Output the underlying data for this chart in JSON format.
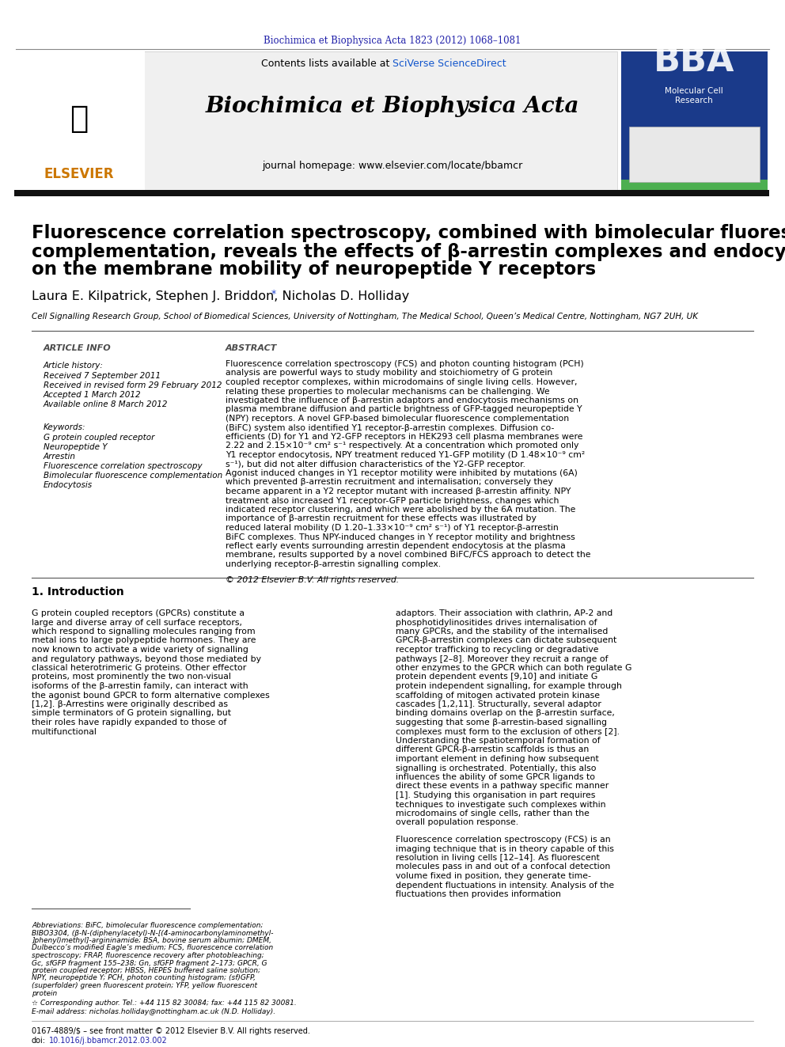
{
  "page_width": 9.92,
  "page_height": 13.23,
  "bg_color": "#ffffff",
  "top_citation": "Biochimica et Biophysica Acta 1823 (2012) 1068–1081",
  "top_citation_color": "#2222aa",
  "header_bg": "#f0f0f0",
  "journal_title": "Biochimica et Biophysica Acta",
  "contents_line": "Contents lists available at ",
  "sciverse_text": "SciVerse ScienceDirect",
  "sciverse_color": "#1155cc",
  "homepage_line": "journal homepage: www.elsevier.com/locate/bbamcr",
  "elsevier_color": "#cc7700",
  "bba_bg": "#1a3a8a",
  "bba_green": "#4caf50",
  "article_title_line1": "Fluorescence correlation spectroscopy, combined with bimolecular fluorescence",
  "article_title_line2": "complementation, reveals the effects of β-arrestin complexes and endocytic targeting",
  "article_title_line3": "on the membrane mobility of neuropeptide Y receptors",
  "authors": "Laura E. Kilpatrick, Stephen J. Briddon, Nicholas D. Holliday ",
  "authors_asterisk": "*",
  "affiliation": "Cell Signalling Research Group, School of Biomedical Sciences, University of Nottingham, The Medical School, Queen’s Medical Centre, Nottingham, NG7 2UH, UK",
  "article_info_title": "ARTICLE INFO",
  "abstract_title": "ABSTRACT",
  "article_history_title": "Article history:",
  "article_history": [
    "Received 7 September 2011",
    "Received in revised form 29 February 2012",
    "Accepted 1 March 2012",
    "Available online 8 March 2012"
  ],
  "keywords_title": "Keywords:",
  "keywords": [
    "G protein coupled receptor",
    "Neuropeptide Y",
    "Arrestin",
    "Fluorescence correlation spectroscopy",
    "Bimolecular fluorescence complementation",
    "Endocytosis"
  ],
  "abstract_text": "Fluorescence correlation spectroscopy (FCS) and photon counting histogram (PCH) analysis are powerful ways to study mobility and stoichiometry of G protein coupled receptor complexes, within microdomains of single living cells. However, relating these properties to molecular mechanisms can be challenging. We investigated the influence of β-arrestin adaptors and endocytosis mechanisms on plasma membrane diffusion and particle brightness of GFP-tagged neuropeptide Y (NPY) receptors. A novel GFP-based bimolecular fluorescence complementation (BiFC) system also identified Y1 receptor-β-arrestin complexes. Diffusion co-efficients (D) for Y1 and Y2-GFP receptors in HEK293 cell plasma membranes were 2.22 and 2.15×10⁻⁹ cm² s⁻¹ respectively. At a concentration which promoted only Y1 receptor endocytosis, NPY treatment reduced Y1-GFP motility (D 1.48×10⁻⁹ cm² s⁻¹), but did not alter diffusion characteristics of the Y2-GFP receptor. Agonist induced changes in Y1 receptor motility were inhibited by mutations (6A) which prevented β-arrestin recruitment and internalisation; conversely they became apparent in a Y2 receptor mutant with increased β-arrestin affinity. NPY treatment also increased Y1 receptor-GFP particle brightness, changes which indicated receptor clustering, and which were abolished by the 6A mutation. The importance of β-arrestin recruitment for these effects was illustrated by reduced lateral mobility (D 1.20–1.33×10⁻⁹ cm² s⁻¹) of Y1 receptor-β-arrestin BiFC complexes. Thus NPY-induced changes in Y receptor motility and brightness reflect early events surrounding arrestin dependent endocytosis at the plasma membrane, results supported by a novel combined BiFC/FCS approach to detect the underlying receptor-β-arrestin signalling complex.",
  "copyright": "© 2012 Elsevier B.V. All rights reserved.",
  "intro_title": "1. Introduction",
  "intro_col1": "G protein coupled receptors (GPCRs) constitute a large and diverse array of cell surface receptors, which respond to signalling molecules ranging from metal ions to large polypeptide hormones. They are now known to activate a wide variety of signalling and regulatory pathways, beyond those mediated by classical heterotrimeric G proteins. Other effector proteins, most prominently the two non-visual isoforms of the β-arrestin family, can interact with the agonist bound GPCR to form alternative complexes [1,2]. β-Arrestins were originally described as simple terminators of G protein signalling, but their roles have rapidly expanded to those of multifunctional",
  "intro_col2": "adaptors. Their association with clathrin, AP-2 and phosphotidylinositides drives internalisation of many GPCRs, and the stability of the internalised GPCR-β-arrestin complexes can dictate subsequent receptor trafficking to recycling or degradative pathways [2–8]. Moreover they recruit a range of other enzymes to the GPCR which can both regulate G protein dependent events [9,10] and initiate G protein independent signalling, for example through scaffolding of mitogen activated protein kinase cascades [1,2,11]. Structurally, several adaptor binding domains overlap on the β-arrestin surface, suggesting that some β-arrestin-based signalling complexes must form to the exclusion of others [2]. Understanding the spatiotemporal formation of different GPCR-β-arrestin scaffolds is thus an important element in defining how subsequent signalling is orchestrated. Potentially, this also influences the ability of some GPCR ligands to direct these events in a pathway specific manner [1]. Studying this organisation in part requires techniques to investigate such complexes within microdomains of single cells, rather than the overall population response.",
  "footnote_abbrev": "Abbreviations: BiFC, bimolecular fluorescence complementation; BIBO3304, (β-N-(diphenylacetyl)-N-[(4-aminocarbonylaminomethyl-]phenyl)methyl]-argininamide; BSA, bovine serum albumin; DMEM, Dulbecco’s modified Eagle’s medium; FCS, fluorescence correlation spectroscopy; FRAP, fluorescence recovery after photobleaching; Gc, sfGFP fragment 155–238; Gn, sfGFP fragment 2–173; GPCR, G protein coupled receptor; HBSS, HEPES buffered saline solution; NPY, neuropeptide Y; PCH, photon counting histogram; (sf)GFP, (superfolder) green fluorescent protein; YFP, yellow fluorescent protein",
  "footnote_corresponding": "☆ Corresponding author. Tel.: +44 115 82 30084; fax: +44 115 82 30081.",
  "footnote_email": "E-mail address: nicholas.holliday@nottingham.ac.uk (N.D. Holliday).",
  "bottom_line1": "0167-4889/$ – see front matter © 2012 Elsevier B.V. All rights reserved.",
  "bottom_line2": "doi:10.1016/j.bbamcr.2012.03.002",
  "doi_color": "#2222aa",
  "fcs_intro": "Fluorescence correlation spectroscopy (FCS) is an imaging technique that is in theory capable of this resolution in living cells [12–14]. As fluorescent molecules pass in and out of a confocal detection volume fixed in position, they generate time-dependent fluctuations in intensity. Analysis of the fluctuations then provides information"
}
